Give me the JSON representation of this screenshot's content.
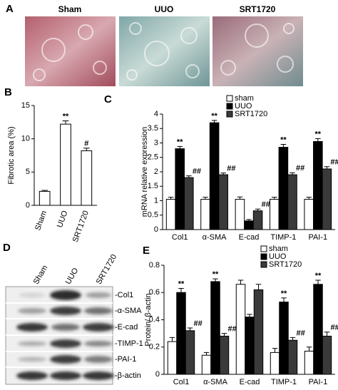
{
  "panels": {
    "labels": [
      "A",
      "B",
      "C",
      "D",
      "E"
    ]
  },
  "histology": {
    "labels": [
      "Sham",
      "UUO",
      "SRT1720"
    ]
  },
  "blot": {
    "lanes": [
      "Sham",
      "UUO",
      "SRT1720"
    ],
    "bands": [
      "-Col1",
      "-α-SMA",
      "-E-cad",
      "-TIMP-1",
      "-PAI-1",
      "-β-actin"
    ]
  },
  "chart_data": [
    {
      "type": "bar",
      "y_label": "Fibrotic area (%)",
      "categories": [
        "Sham",
        "UUO",
        "SRT1720"
      ],
      "values": [
        2.1,
        12.2,
        8.2
      ],
      "errors": [
        0.15,
        0.5,
        0.4
      ],
      "annotations": [
        null,
        "**",
        "#"
      ],
      "color": "#ffffff",
      "ylim": [
        0,
        15
      ],
      "yticks": [
        0,
        5,
        10,
        15
      ]
    },
    {
      "type": "bar",
      "y_label": "mRNA relative expression",
      "categories": [
        "Col1",
        "α-SMA",
        "E-cad",
        "TIMP-1",
        "PAI-1"
      ],
      "series": [
        {
          "name": "sham",
          "color": "#ffffff",
          "values": [
            1.05,
            1.05,
            1.05,
            1.05,
            1.05
          ],
          "errors": [
            0.07,
            0.07,
            0.08,
            0.07,
            0.07
          ],
          "annotations": [
            null,
            null,
            null,
            null,
            null
          ]
        },
        {
          "name": "UUO",
          "color": "#000000",
          "values": [
            2.8,
            3.7,
            0.3,
            2.85,
            3.05
          ],
          "errors": [
            0.08,
            0.08,
            0.05,
            0.1,
            0.1
          ],
          "annotations": [
            "**",
            "**",
            null,
            "**",
            "**"
          ]
        },
        {
          "name": "SRT1720",
          "color": "#3a3a3a",
          "values": [
            1.8,
            1.9,
            0.65,
            1.9,
            2.1
          ],
          "errors": [
            0.06,
            0.06,
            0.06,
            0.07,
            0.08
          ],
          "annotations": [
            "##",
            "##",
            "##",
            "##",
            "##"
          ]
        }
      ],
      "ylim": [
        0,
        4
      ],
      "yticks": [
        0,
        0.5,
        1,
        1.5,
        2,
        2.5,
        3,
        3.5,
        4
      ],
      "legend": "top-right"
    },
    {
      "type": "bar",
      "y_label": "Protein/ β-actin",
      "categories": [
        "Col1",
        "α-SMA",
        "E-cad",
        "TIMP-1",
        "PAI-1"
      ],
      "series": [
        {
          "name": "sham",
          "color": "#ffffff",
          "values": [
            0.24,
            0.14,
            0.66,
            0.16,
            0.17
          ],
          "errors": [
            0.03,
            0.02,
            0.03,
            0.03,
            0.03
          ],
          "annotations": [
            null,
            null,
            null,
            null,
            null
          ]
        },
        {
          "name": "UUO",
          "color": "#000000",
          "values": [
            0.6,
            0.68,
            0.42,
            0.53,
            0.66
          ],
          "errors": [
            0.03,
            0.02,
            0.02,
            0.03,
            0.03
          ],
          "annotations": [
            "**",
            "**",
            null,
            "**",
            "**"
          ]
        },
        {
          "name": "SRT1720",
          "color": "#3a3a3a",
          "values": [
            0.32,
            0.28,
            0.62,
            0.25,
            0.28
          ],
          "errors": [
            0.02,
            0.02,
            0.04,
            0.02,
            0.03
          ],
          "annotations": [
            "##",
            "##",
            null,
            "##",
            "##"
          ]
        }
      ],
      "ylim": [
        0,
        0.8
      ],
      "yticks": [
        0,
        0.2,
        0.4,
        0.6,
        0.8
      ],
      "legend": "top-right"
    }
  ]
}
